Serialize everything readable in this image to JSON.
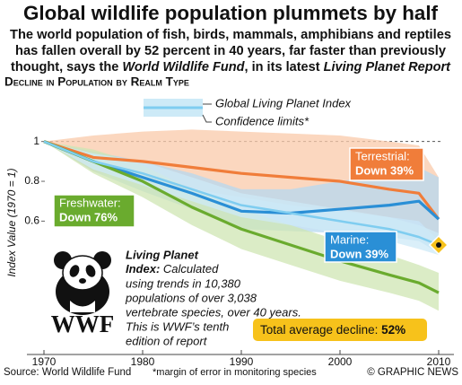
{
  "chart_data": {
    "type": "line",
    "title": "Global wildlife population plummets by half",
    "subtitle": [
      "The world population of fish, birds, mammals, amphibians and reptiles",
      "has fallen overall by 52 percent in 40 years, far faster than previously",
      "thought, says the ",
      "World Wildlife Fund",
      ", in its latest ",
      "Living Planet Report"
    ],
    "heading": "Decline in Population by Realm Type",
    "ylabel": "Index Value (1970 = 1)",
    "x": [
      1970,
      1975,
      1980,
      1985,
      1990,
      1995,
      2000,
      2005,
      2008,
      2010
    ],
    "xlim": [
      1969,
      2011
    ],
    "xticks": [
      1970,
      1980,
      1990,
      2000,
      2010
    ],
    "ylim": [
      -0.07,
      1.26
    ],
    "yticks": [
      0.6,
      0.8,
      1
    ],
    "baseline": 1,
    "band_legend": "Confidence limits*",
    "series": [
      {
        "name": "Terrestrial:",
        "annotation": "Down 39%",
        "color": "#f07d3a",
        "band_color": "#f9c9a9",
        "values": [
          1,
          0.92,
          0.9,
          0.87,
          0.84,
          0.82,
          0.8,
          0.76,
          0.74,
          0.61
        ],
        "lower": [
          1,
          0.85,
          0.8,
          0.76,
          0.72,
          0.68,
          0.65,
          0.62,
          0.6,
          0.5
        ],
        "upper": [
          1,
          1.03,
          1.05,
          1.06,
          1.05,
          1.04,
          1.03,
          1.0,
          0.98,
          0.82
        ]
      },
      {
        "name": "Marine:",
        "annotation": "Down 39%",
        "color": "#2a8fd6",
        "band_color": "#b5d8f0",
        "values": [
          1,
          0.9,
          0.82,
          0.74,
          0.65,
          0.64,
          0.66,
          0.68,
          0.7,
          0.61
        ],
        "lower": [
          1,
          0.85,
          0.75,
          0.66,
          0.56,
          0.55,
          0.54,
          0.52,
          0.5,
          0.44
        ],
        "upper": [
          1,
          0.95,
          0.9,
          0.84,
          0.76,
          0.76,
          0.8,
          0.84,
          0.87,
          0.82
        ]
      },
      {
        "name": "Freshwater:",
        "annotation": "Down 76%",
        "color": "#6aab2e",
        "band_color": "#cfe6b3",
        "values": [
          1,
          0.9,
          0.8,
          0.67,
          0.56,
          0.48,
          0.4,
          0.33,
          0.29,
          0.24
        ],
        "lower": [
          1,
          0.84,
          0.72,
          0.58,
          0.46,
          0.38,
          0.3,
          0.24,
          0.2,
          0.15
        ],
        "upper": [
          1,
          0.96,
          0.88,
          0.76,
          0.66,
          0.58,
          0.5,
          0.43,
          0.38,
          0.34
        ]
      },
      {
        "name": "Global Living Planet Index",
        "color": "#7fcdf0",
        "band_color": "#cdeaf7",
        "values": [
          1,
          0.9,
          0.84,
          0.76,
          0.68,
          0.64,
          0.6,
          0.56,
          0.52,
          0.48
        ],
        "lower": [
          1,
          0.86,
          0.78,
          0.7,
          0.62,
          0.58,
          0.54,
          0.5,
          0.46,
          0.43
        ],
        "upper": [
          1,
          0.94,
          0.9,
          0.82,
          0.74,
          0.7,
          0.66,
          0.62,
          0.58,
          0.54
        ]
      }
    ],
    "total": {
      "label": "Total average decline: ",
      "value_label": "52%",
      "color": "#f7c21b"
    },
    "note": {
      "heading": [
        "Living Planet",
        "Index:"
      ],
      "lines": [
        " Calculated",
        "using trends in 10,380",
        "populations of over 3,038",
        "vertebrate species, over 40 years.",
        "This is WWF’s tenth",
        "edition of report"
      ]
    },
    "logo": "WWF",
    "source": "Source: World Wildlife Fund",
    "footnote": "*margin of error in monitoring species",
    "credit": "© GRAPHIC NEWS"
  }
}
